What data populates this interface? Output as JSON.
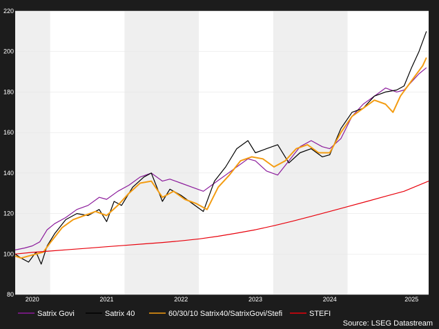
{
  "chart_data": {
    "type": "line",
    "title": "",
    "xlabel": "",
    "ylabel": "",
    "ylim": [
      80,
      220
    ],
    "xlim": [
      2019.77,
      2025.33
    ],
    "yticks": [
      80,
      100,
      120,
      140,
      160,
      180,
      200,
      220
    ],
    "xticks": [
      {
        "label": "2020",
        "x": 2020.0
      },
      {
        "label": "2021",
        "x": 2021.0
      },
      {
        "label": "2022",
        "x": 2022.0
      },
      {
        "label": "2023",
        "x": 2023.0
      },
      {
        "label": "2024",
        "x": 2024.0
      },
      {
        "label": "2025",
        "x": 2025.0
      }
    ],
    "shaded_bands": [
      [
        2019.77,
        2020.24
      ],
      [
        2021.24,
        2022.24
      ],
      [
        2023.24,
        2024.24
      ]
    ],
    "grid": true,
    "legend_position": "bottom",
    "source": "Source: LSEG Datastream",
    "series": [
      {
        "name": "Satrix Govi",
        "color": "#8b1a9b",
        "x": [
          2019.77,
          2019.9,
          2020.0,
          2020.1,
          2020.2,
          2020.3,
          2020.45,
          2020.6,
          2020.75,
          2020.9,
          2021.0,
          2021.15,
          2021.3,
          2021.45,
          2021.6,
          2021.75,
          2021.85,
          2022.0,
          2022.15,
          2022.3,
          2022.45,
          2022.6,
          2022.75,
          2022.9,
          2023.0,
          2023.15,
          2023.3,
          2023.45,
          2023.6,
          2023.75,
          2023.9,
          2024.0,
          2024.15,
          2024.3,
          2024.45,
          2024.6,
          2024.75,
          2024.9,
          2025.0,
          2025.1,
          2025.2,
          2025.3
        ],
        "y": [
          102,
          103,
          104,
          106,
          112,
          115,
          118,
          122,
          124,
          128,
          127,
          131,
          134,
          138,
          140,
          136,
          137,
          135,
          133,
          131,
          135,
          139,
          143,
          147,
          146,
          141,
          139,
          146,
          153,
          156,
          153,
          152,
          157,
          168,
          174,
          178,
          182,
          180,
          181,
          185,
          189,
          192
        ]
      },
      {
        "name": "Satrix 40",
        "color": "#000000",
        "x": [
          2019.77,
          2019.85,
          2019.95,
          2020.05,
          2020.12,
          2020.2,
          2020.3,
          2020.45,
          2020.6,
          2020.75,
          2020.9,
          2021.0,
          2021.1,
          2021.2,
          2021.35,
          2021.5,
          2021.6,
          2021.75,
          2021.85,
          2022.0,
          2022.15,
          2022.3,
          2022.45,
          2022.6,
          2022.75,
          2022.9,
          2023.0,
          2023.15,
          2023.3,
          2023.45,
          2023.6,
          2023.75,
          2023.9,
          2024.0,
          2024.15,
          2024.3,
          2024.45,
          2024.6,
          2024.75,
          2024.9,
          2025.0,
          2025.1,
          2025.2,
          2025.3
        ],
        "y": [
          100,
          98,
          96,
          101,
          95,
          104,
          110,
          117,
          120,
          119,
          122,
          116,
          126,
          124,
          133,
          138,
          140,
          126,
          132,
          129,
          125,
          121,
          136,
          143,
          152,
          156,
          150,
          152,
          154,
          145,
          150,
          152,
          148,
          149,
          162,
          170,
          172,
          178,
          180,
          181,
          183,
          192,
          200,
          210
        ]
      },
      {
        "name": "60/30/10 Satrix40/SatrixGovi/Stefi",
        "color": "#f39c12",
        "x": [
          2019.77,
          2019.85,
          2019.95,
          2020.05,
          2020.15,
          2020.25,
          2020.4,
          2020.55,
          2020.7,
          2020.85,
          2021.0,
          2021.15,
          2021.3,
          2021.45,
          2021.6,
          2021.75,
          2021.9,
          2022.05,
          2022.2,
          2022.35,
          2022.5,
          2022.65,
          2022.8,
          2022.95,
          2023.1,
          2023.25,
          2023.4,
          2023.55,
          2023.7,
          2023.85,
          2024.0,
          2024.15,
          2024.3,
          2024.45,
          2024.6,
          2024.75,
          2024.85,
          2024.95,
          2025.05,
          2025.15,
          2025.25,
          2025.3
        ],
        "y": [
          99,
          98,
          99,
          100,
          101,
          106,
          113,
          117,
          119,
          121,
          119,
          124,
          130,
          135,
          136,
          128,
          131,
          127,
          125,
          122,
          133,
          139,
          146,
          148,
          147,
          143,
          146,
          152,
          154,
          150,
          150,
          160,
          168,
          172,
          176,
          174,
          170,
          178,
          183,
          188,
          193,
          197
        ]
      },
      {
        "name": "STEFI",
        "color": "#e8000b",
        "x": [
          2019.77,
          2020.0,
          2020.25,
          2020.5,
          2020.75,
          2021.0,
          2021.25,
          2021.5,
          2021.75,
          2022.0,
          2022.25,
          2022.5,
          2022.75,
          2023.0,
          2023.25,
          2023.5,
          2023.75,
          2024.0,
          2024.25,
          2024.5,
          2024.75,
          2025.0,
          2025.33
        ],
        "y": [
          100,
          100.8,
          101.5,
          102.2,
          102.9,
          103.6,
          104.3,
          105.0,
          105.7,
          106.5,
          107.5,
          108.8,
          110.3,
          112.0,
          114.0,
          116.2,
          118.6,
          121.0,
          123.5,
          126.0,
          128.5,
          131.0,
          136.0
        ]
      }
    ]
  }
}
